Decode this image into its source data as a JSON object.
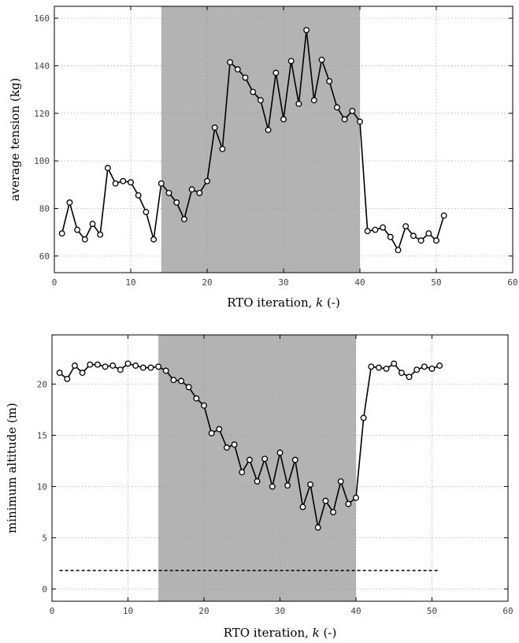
{
  "chart_data": [
    {
      "type": "line",
      "xlabel": "RTO iteration, k (-)",
      "xlabel_text": "RTO iteration, ",
      "xlabel_var": "k",
      "xlabel_unit": " (-)",
      "ylabel": "average tension (kg)",
      "xlim": [
        0,
        60
      ],
      "ylim": [
        53,
        165
      ],
      "xticks": [
        0,
        10,
        20,
        30,
        40,
        50,
        60
      ],
      "yticks": [
        60,
        80,
        100,
        120,
        140,
        160
      ],
      "grid": true,
      "shaded_region": [
        14,
        40
      ],
      "shade_color": "#b3b3b3",
      "series": [
        {
          "x": [
            1,
            2,
            3,
            4,
            5,
            6,
            7,
            8,
            9,
            10,
            11,
            12,
            13,
            14,
            15,
            16,
            17,
            18,
            19,
            20,
            21,
            22,
            23,
            24,
            25,
            26,
            27,
            28,
            29,
            30,
            31,
            32,
            33,
            34,
            35,
            36,
            37,
            38,
            39,
            40,
            41,
            42,
            43,
            44,
            45,
            46,
            47,
            48,
            49,
            50,
            51
          ],
          "y": [
            69.5,
            82.5,
            71,
            67,
            73.5,
            69,
            97,
            90.5,
            91.5,
            91,
            85.5,
            78.5,
            67,
            90.5,
            86.5,
            82.5,
            75.5,
            88,
            86.5,
            91.5,
            114,
            105,
            141.5,
            138.5,
            135,
            129,
            125.5,
            113,
            137,
            117.5,
            142,
            124,
            155,
            125.5,
            142.5,
            133.5,
            122.5,
            117.5,
            121,
            116.5,
            70.5,
            71,
            72,
            68,
            62.5,
            72.5,
            68.5,
            66.5,
            69.5,
            66.5,
            77
          ]
        }
      ]
    },
    {
      "type": "line",
      "xlabel": "RTO iteration, k (-)",
      "xlabel_text": "RTO iteration, ",
      "xlabel_var": "k",
      "xlabel_unit": " (-)",
      "ylabel": "minimum altitude (m)",
      "xlim": [
        0,
        60
      ],
      "ylim": [
        -1.2,
        24.8
      ],
      "xticks": [
        0,
        10,
        20,
        30,
        40,
        50,
        60
      ],
      "yticks": [
        0,
        5,
        10,
        15,
        20
      ],
      "grid": true,
      "shaded_region": [
        14,
        40
      ],
      "shade_color": "#b3b3b3",
      "reference_line": {
        "x": [
          1,
          51
        ],
        "y": 1.8,
        "style": "dashed"
      },
      "series": [
        {
          "x": [
            1,
            2,
            3,
            4,
            5,
            6,
            7,
            8,
            9,
            10,
            11,
            12,
            13,
            14,
            15,
            16,
            17,
            18,
            19,
            20,
            21,
            22,
            23,
            24,
            25,
            26,
            27,
            28,
            29,
            30,
            31,
            32,
            33,
            34,
            35,
            36,
            37,
            38,
            39,
            40,
            41,
            42,
            43,
            44,
            45,
            46,
            47,
            48,
            49,
            50,
            51
          ],
          "y": [
            21.1,
            20.5,
            21.8,
            21.1,
            21.9,
            21.9,
            21.7,
            21.8,
            21.4,
            22,
            21.8,
            21.6,
            21.6,
            21.7,
            21.3,
            20.4,
            20.3,
            19.7,
            18.6,
            17.9,
            15.2,
            15.6,
            13.8,
            14.1,
            11.4,
            12.6,
            10.5,
            12.7,
            10,
            13.3,
            10.1,
            12.6,
            8,
            10.2,
            6,
            8.6,
            7.5,
            10.5,
            8.3,
            8.9,
            16.7,
            21.7,
            21.6,
            21.5,
            22,
            21.1,
            20.7,
            21.4,
            21.7,
            21.5,
            21.8
          ]
        }
      ]
    }
  ]
}
